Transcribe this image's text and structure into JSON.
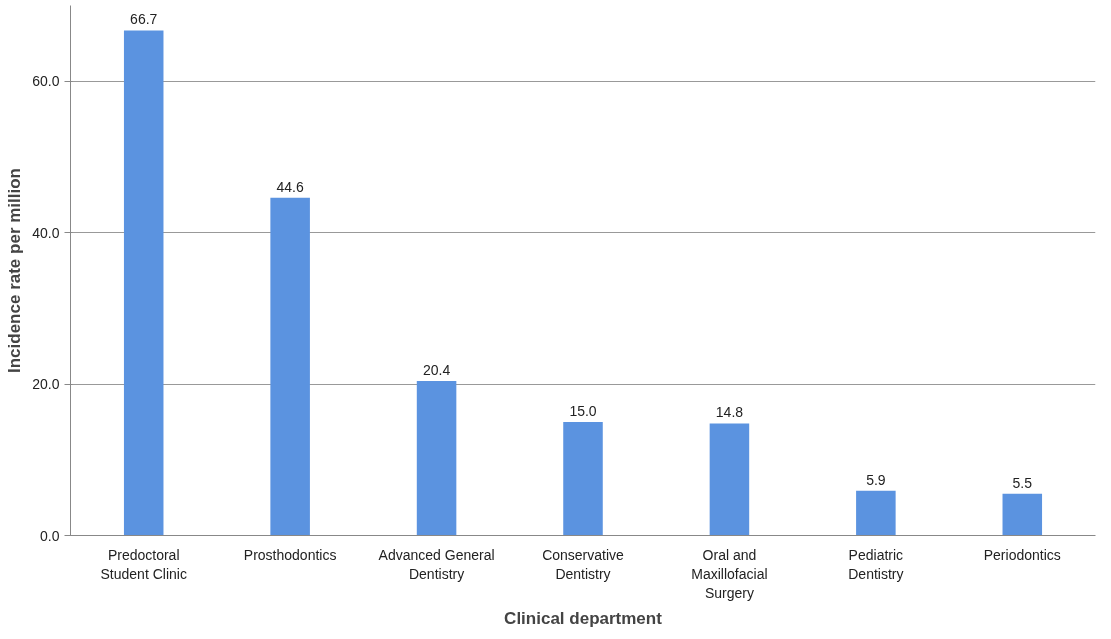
{
  "chart_data": {
    "type": "bar",
    "xlabel": "Clinical department",
    "ylabel": "Incidence rate per million",
    "categories": [
      "Predoctoral Student Clinic",
      "Prosthodontics",
      "Advanced General Dentistry",
      "Conservative Dentistry",
      "Oral and Maxillofacial Surgery",
      "Pediatric Dentistry",
      "Periodontics"
    ],
    "values": [
      66.7,
      44.6,
      20.4,
      15.0,
      14.8,
      5.9,
      5.5
    ],
    "value_labels": [
      "66.7",
      "44.6",
      "20.4",
      "15.0",
      "14.8",
      "5.9",
      "5.5"
    ],
    "color": "#5b93e0",
    "ylim": [
      0,
      70
    ],
    "yticks": [
      {
        "value": 0,
        "label": "0.0"
      },
      {
        "value": 20,
        "label": "20.0"
      },
      {
        "value": 40,
        "label": "40.0"
      },
      {
        "value": 60,
        "label": "60.0"
      }
    ],
    "grid": "y"
  }
}
